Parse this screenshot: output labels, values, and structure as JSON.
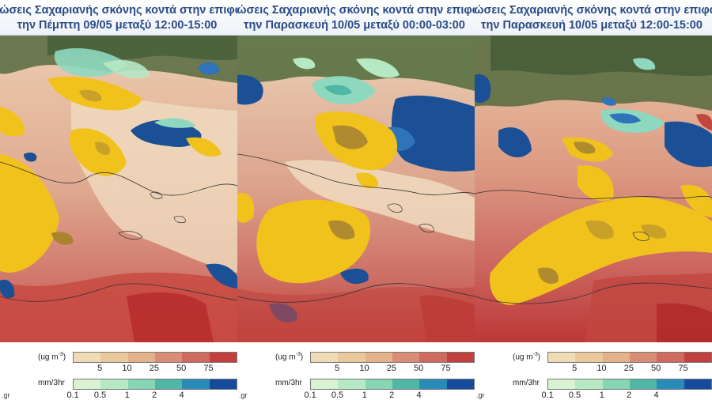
{
  "panels": [
    {
      "title_line1": "ρώσεις Σαχαριανής σκόνης κοντά στην επιφά",
      "title_line2": "την Πέμπτη 09/05 μεταξύ 12:00-15:00"
    },
    {
      "title_line1": "ρώσεις Σαχαριανής σκόνης κοντά στην επιφά",
      "title_line2": "την Παρασκευή 10/05 μεταξύ 00:00-03:00"
    },
    {
      "title_line1": "ρώσεις Σαχαριανής σκόνης κοντά στην επιφά",
      "title_line2": "την Παρασκευή 10/05 μεταξύ 12:00-15:00"
    }
  ],
  "legend": {
    "concentration_unit_base": "(ug m",
    "concentration_unit_exp": "-3",
    "concentration_unit_close": ")",
    "concentration_ticks": [
      "5",
      "10",
      "25",
      "50",
      "75"
    ],
    "concentration_colors": [
      "#efdcb6",
      "#e9c99c",
      "#e3b28a",
      "#d98c76",
      "#cf6a60",
      "#c2413f"
    ],
    "deposition_unit": "mm/3hr",
    "deposition_ticks": [
      "0.1",
      "0.5",
      "1",
      "2",
      "4"
    ],
    "deposition_colors": [
      "#d9f3d2",
      "#b7e8c4",
      "#86d6b4",
      "#4fb7a3",
      "#2b8bb8",
      "#154a9c"
    ],
    "credit": ".gr"
  },
  "colors": {
    "title_text": "#2a4a86",
    "dust_light": "#e8c9a8",
    "dust_mid": "#d98e7c",
    "dust_heavy": "#c43c38",
    "plume_yellow": "#f2c21c",
    "plume_core": "#b08a2e",
    "deep_blue": "#1b4f96",
    "teal_precip": "#8fd8c0"
  }
}
